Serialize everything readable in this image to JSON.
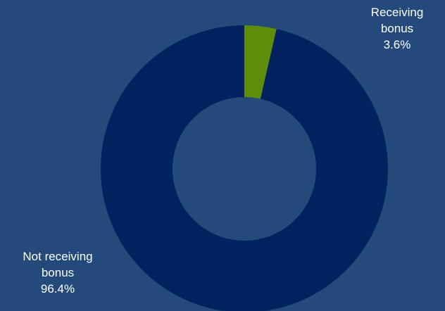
{
  "chart_data": {
    "type": "pie",
    "style": "donut",
    "title": "",
    "slices": [
      {
        "label_line1": "Receiving",
        "label_line2": "bonus",
        "percent_label": "3.6%",
        "value": 3.6,
        "color": "#5e8d0c"
      },
      {
        "label_line1": "Not receiving",
        "label_line2": "bonus",
        "percent_label": "96.4%",
        "value": 96.4,
        "color": "#03215e"
      }
    ],
    "legend": "none",
    "labels": "outside"
  },
  "colors": {
    "background": "#234a7b",
    "label_text": "#ffffff"
  }
}
